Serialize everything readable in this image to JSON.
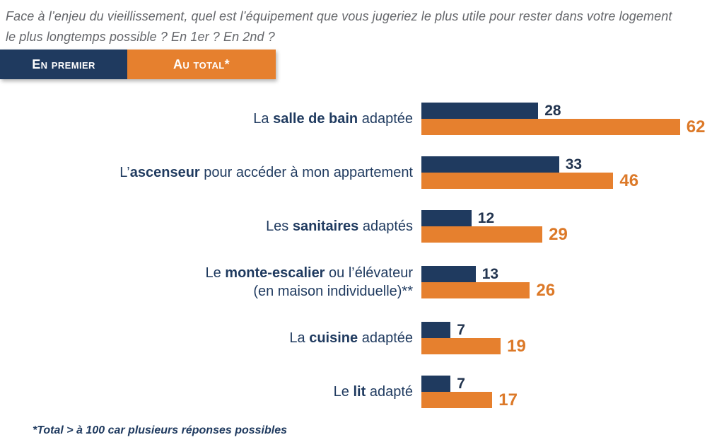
{
  "title": {
    "line1": "Face à l’enjeu du vieillissement, quel est l’équipement que vous jugeriez le plus utile pour rester dans votre logement",
    "line2": "le plus longtemps possible ? En 1er ? En 2nd ?"
  },
  "legend": {
    "premier": "En premier",
    "total": "Au total*"
  },
  "footnote": "*Total > à 100 car plusieurs réponses possibles",
  "colors": {
    "navy": "#1F3A5F",
    "orange": "#E6802E",
    "orange_text": "#DC7928",
    "title_gray": "#65676B"
  },
  "chart_data": {
    "type": "bar",
    "orientation": "horizontal",
    "title": "Face à l’enjeu du vieillissement, quel est l’équipement que vous jugeriez le plus utile pour rester dans votre logement le plus longtemps possible ? En 1er ? En 2nd ?",
    "legend_position": "top-left",
    "grid": false,
    "xlim": [
      0,
      65
    ],
    "categories": [
      "La salle de bain adaptée",
      "L’ascenseur pour accéder à mon appartement",
      "Les sanitaires adaptés",
      "Le monte-escalier ou l’élévateur (en maison individuelle)**",
      "La cuisine adaptée",
      "Le lit adapté"
    ],
    "series": [
      {
        "name": "En premier",
        "color": "#1F3A5F",
        "values": [
          28,
          33,
          12,
          13,
          7,
          7
        ]
      },
      {
        "name": "Au total*",
        "color": "#E6802E",
        "values": [
          62,
          46,
          29,
          26,
          19,
          17
        ]
      }
    ],
    "rows": [
      {
        "label_parts": [
          {
            "text": "La ",
            "bold": false
          },
          {
            "text": "salle de bain",
            "bold": true
          },
          {
            "text": " adaptée",
            "bold": false
          }
        ],
        "label_line2": "",
        "premier": 28,
        "total": 62
      },
      {
        "label_parts": [
          {
            "text": "L’",
            "bold": false
          },
          {
            "text": "ascenseur",
            "bold": true
          },
          {
            "text": " pour accéder à mon appartement",
            "bold": false
          }
        ],
        "label_line2": "",
        "premier": 33,
        "total": 46
      },
      {
        "label_parts": [
          {
            "text": "Les ",
            "bold": false
          },
          {
            "text": "sanitaires",
            "bold": true
          },
          {
            "text": " adaptés",
            "bold": false
          }
        ],
        "label_line2": "",
        "premier": 12,
        "total": 29
      },
      {
        "label_parts": [
          {
            "text": "Le ",
            "bold": false
          },
          {
            "text": "monte-escalier",
            "bold": true
          },
          {
            "text": " ou l’élévateur",
            "bold": false
          }
        ],
        "label_line2": "(en maison individuelle)**",
        "premier": 13,
        "total": 26
      },
      {
        "label_parts": [
          {
            "text": "La ",
            "bold": false
          },
          {
            "text": "cuisine",
            "bold": true
          },
          {
            "text": " adaptée",
            "bold": false
          }
        ],
        "label_line2": "",
        "premier": 7,
        "total": 19
      },
      {
        "label_parts": [
          {
            "text": "Le ",
            "bold": false
          },
          {
            "text": "lit",
            "bold": true
          },
          {
            "text": " adapté",
            "bold": false
          }
        ],
        "label_line2": "",
        "premier": 7,
        "total": 17
      }
    ]
  }
}
